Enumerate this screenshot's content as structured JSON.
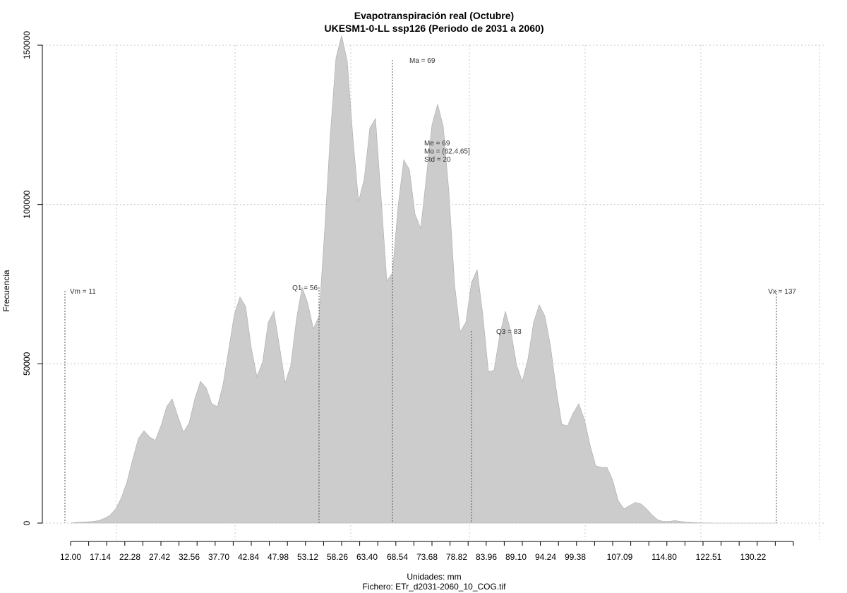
{
  "chart_data": {
    "type": "area",
    "title": "Evapotranspiración real (Octubre)",
    "subtitle": "UKESM1-0-LL ssp126 (Periodo de 2031 a 2060)",
    "xlabel": "Unidades: mm",
    "ylabel": "Frecuencia",
    "footer": "Fichero: ETr_d2031-2060_10_COG.tif",
    "xlim": [
      12,
      140
    ],
    "ylim": [
      0,
      150000
    ],
    "x_ticks": [
      "12.00",
      "17.14",
      "22.28",
      "27.42",
      "32.56",
      "37.70",
      "42.84",
      "47.98",
      "53.12",
      "58.26",
      "63.40",
      "68.54",
      "73.68",
      "78.82",
      "83.96",
      "89.10",
      "94.24",
      "99.38",
      "107.09",
      "114.80",
      "122.51",
      "130.22"
    ],
    "y_ticks": [
      "0",
      "50000",
      "100000",
      "150000"
    ],
    "fill_color": "#cccccc",
    "grid": true,
    "series": [
      {
        "x": [
          12,
          13,
          14,
          15,
          16,
          17,
          18,
          19,
          20,
          21,
          22,
          23,
          24,
          25,
          26,
          27,
          28,
          29,
          30,
          31,
          32,
          33,
          34,
          35,
          36,
          37,
          38,
          39,
          40,
          41,
          42,
          43,
          44,
          45,
          46,
          47,
          48,
          49,
          50,
          51,
          52,
          53,
          54,
          55,
          56,
          57,
          58,
          59,
          60,
          61,
          62,
          63,
          64,
          65,
          66,
          67,
          68,
          69,
          70,
          71,
          72,
          73,
          74,
          75,
          76,
          77,
          78,
          79,
          80,
          81,
          82,
          83,
          84,
          85,
          86,
          87,
          88,
          89,
          90,
          91,
          92,
          93,
          94,
          95,
          96,
          97,
          98,
          99,
          100,
          101,
          102,
          103,
          104,
          105,
          106,
          107,
          108,
          109,
          110,
          111,
          112,
          113,
          114,
          115,
          116,
          117,
          118,
          119,
          120,
          121,
          122,
          123,
          124,
          125,
          126,
          127,
          128,
          129,
          130,
          131,
          132,
          133,
          134,
          135,
          136,
          137
        ],
        "y": [
          0,
          200,
          300,
          400,
          500,
          800,
          1500,
          2500,
          4500,
          8000,
          13000,
          20000,
          26500,
          29000,
          27000,
          26000,
          30500,
          36500,
          39000,
          33500,
          28500,
          31500,
          39000,
          44500,
          42500,
          37500,
          36500,
          43500,
          54500,
          65500,
          71000,
          68000,
          55000,
          46000,
          50500,
          63000,
          66500,
          55500,
          44000,
          49500,
          64000,
          74000,
          69000,
          61000,
          65000,
          92000,
          122000,
          146000,
          153000,
          145000,
          121000,
          101000,
          108000,
          124000,
          127000,
          102000,
          76000,
          78500,
          99500,
          114000,
          111000,
          97000,
          92500,
          108500,
          125000,
          131500,
          124500,
          104000,
          75000,
          60000,
          63000,
          75500,
          79500,
          65500,
          47500,
          48000,
          59000,
          66500,
          60000,
          49500,
          44500,
          51500,
          63000,
          68500,
          65000,
          55500,
          42000,
          31000,
          30500,
          34500,
          37500,
          32500,
          24500,
          18000,
          17500,
          17500,
          13500,
          7000,
          4500,
          5500,
          6500,
          6000,
          4500,
          2500,
          1000,
          500,
          500,
          800,
          500,
          300,
          200,
          100,
          50,
          50,
          0,
          0,
          0,
          0,
          0,
          0,
          0,
          0,
          0,
          0,
          0,
          0
        ]
      }
    ],
    "annotations": {
      "vm": {
        "label": "Vm = 11",
        "x": 11
      },
      "q1": {
        "label": "Q1 = 56",
        "x": 56
      },
      "ma": {
        "label": "Ma = 69",
        "x": 69
      },
      "stats": [
        "Me = 69",
        "Mo = (62.4,65]",
        "Std = 20"
      ],
      "q3": {
        "label": "Q3 = 83",
        "x": 83
      },
      "vx": {
        "label": "Vx = 137",
        "x": 137
      }
    }
  }
}
